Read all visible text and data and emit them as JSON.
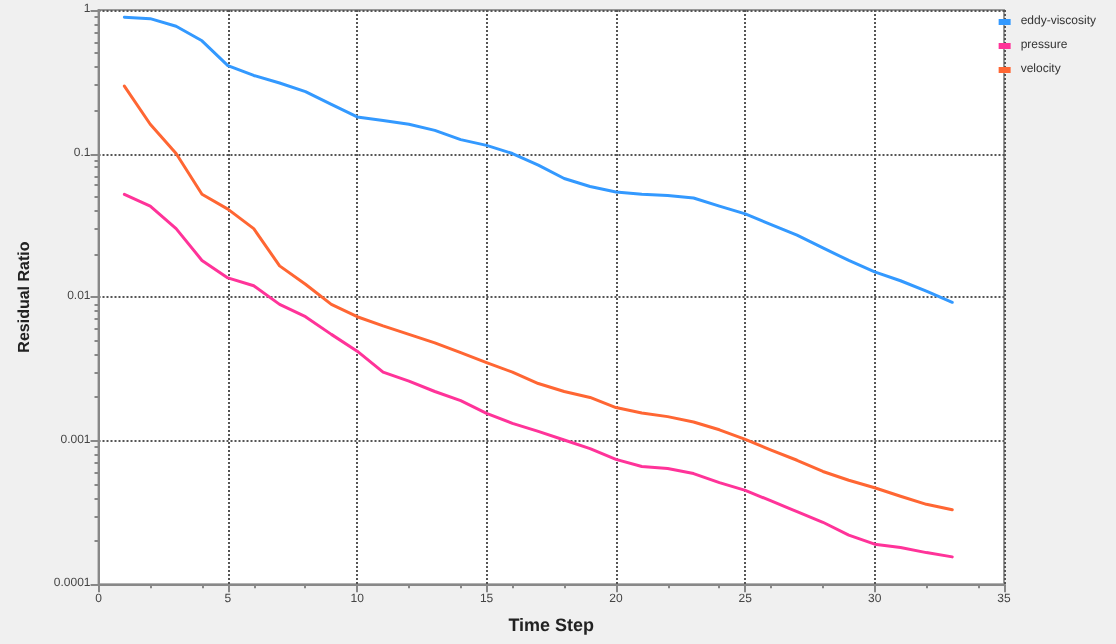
{
  "chart_data": {
    "type": "line",
    "xlabel": "Time Step",
    "ylabel": "Residual Ratio",
    "log": "y",
    "grid": true,
    "legend": "top right",
    "marker": "none",
    "line_style": "solid",
    "x": [
      1,
      2,
      3,
      4,
      5,
      6,
      7,
      8,
      9,
      10,
      11,
      12,
      13,
      14,
      15,
      16,
      17,
      18,
      19,
      20,
      21,
      22,
      23,
      24,
      25,
      26,
      27,
      28,
      29,
      30,
      31,
      32,
      33
    ],
    "xlim": [
      0,
      35
    ],
    "xticks": [
      0,
      5,
      10,
      15,
      20,
      25,
      30,
      35
    ],
    "ylim": [
      0.0001,
      1
    ],
    "yticks": [
      1,
      0.1,
      0.01,
      0.001,
      0.0001
    ],
    "series": [
      {
        "name": "eddy-viscosity",
        "color": "#3399ff",
        "values": [
          0.89,
          0.87,
          0.77,
          0.61,
          0.41,
          0.35,
          0.31,
          0.27,
          0.22,
          0.18,
          0.17,
          0.16,
          0.145,
          0.125,
          0.114,
          0.1,
          0.083,
          0.067,
          0.059,
          0.054,
          0.052,
          0.051,
          0.049,
          0.043,
          0.038,
          0.032,
          0.027,
          0.022,
          0.018,
          0.015,
          0.013,
          0.011,
          0.0092
        ]
      },
      {
        "name": "pressure",
        "color": "#ff3399",
        "values": [
          0.052,
          0.043,
          0.03,
          0.018,
          0.0136,
          0.012,
          0.0089,
          0.0073,
          0.0055,
          0.0042,
          0.003,
          0.0026,
          0.0022,
          0.0019,
          0.00155,
          0.00132,
          0.00116,
          0.00101,
          0.00088,
          0.00074,
          0.00066,
          0.00064,
          0.00059,
          0.00051,
          0.00045,
          0.00038,
          0.00032,
          0.00027,
          0.00022,
          0.00019,
          0.00018,
          0.000166,
          0.000155
        ]
      },
      {
        "name": "velocity",
        "color": "#ff6633",
        "values": [
          0.295,
          0.16,
          0.1,
          0.052,
          0.041,
          0.03,
          0.0165,
          0.0123,
          0.0089,
          0.0073,
          0.0063,
          0.0055,
          0.0048,
          0.0041,
          0.0035,
          0.003,
          0.0025,
          0.0022,
          0.002,
          0.0017,
          0.00156,
          0.00147,
          0.00135,
          0.00119,
          0.00102,
          0.00086,
          0.00073,
          0.00061,
          0.00053,
          0.00047,
          0.00041,
          0.00036,
          0.00033
        ]
      }
    ]
  }
}
